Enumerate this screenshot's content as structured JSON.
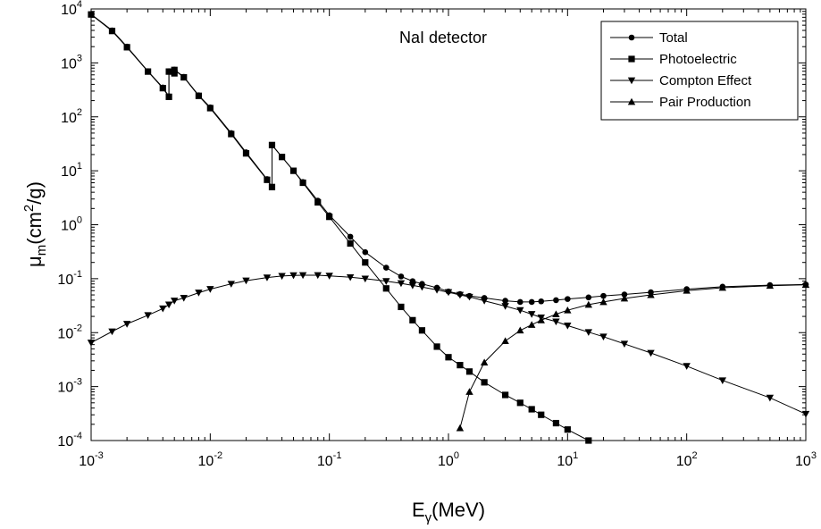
{
  "chart_data": {
    "type": "line",
    "scale": {
      "x": "log",
      "y": "log"
    },
    "xlim": [
      0.001,
      1000
    ],
    "ylim": [
      0.0001,
      10000
    ],
    "xlabel": {
      "main": "E",
      "sub": "γ",
      "rest": "(MeV)"
    },
    "ylabel": {
      "main": "μ",
      "sub": "m",
      "mid": "(cm",
      "sup": "2",
      "rest": "/g)"
    },
    "x_ticks": [
      {
        "value": 0.001,
        "base": "10",
        "exp": "-3"
      },
      {
        "value": 0.01,
        "base": "10",
        "exp": "-2"
      },
      {
        "value": 0.1,
        "base": "10",
        "exp": "-1"
      },
      {
        "value": 1,
        "base": "10",
        "exp": "0"
      },
      {
        "value": 10,
        "base": "10",
        "exp": "1"
      },
      {
        "value": 100,
        "base": "10",
        "exp": "2"
      },
      {
        "value": 1000,
        "base": "10",
        "exp": "3"
      }
    ],
    "y_ticks": [
      {
        "value": 0.0001,
        "base": "10",
        "exp": "-4"
      },
      {
        "value": 0.001,
        "base": "10",
        "exp": "-3"
      },
      {
        "value": 0.01,
        "base": "10",
        "exp": "-2"
      },
      {
        "value": 0.1,
        "base": "10",
        "exp": "-1"
      },
      {
        "value": 1,
        "base": "10",
        "exp": "0"
      },
      {
        "value": 10,
        "base": "10",
        "exp": "1"
      },
      {
        "value": 100,
        "base": "10",
        "exp": "2"
      },
      {
        "value": 1000,
        "base": "10",
        "exp": "3"
      },
      {
        "value": 10000,
        "base": "10",
        "exp": "4"
      }
    ],
    "annotation": "NaI detector",
    "legend_position": "top-right",
    "grid": false,
    "series": [
      {
        "name": "Total",
        "marker": "circle",
        "points": [
          [
            0.001,
            8000
          ],
          [
            0.0015,
            4000
          ],
          [
            0.002,
            2000
          ],
          [
            0.003,
            700
          ],
          [
            0.004,
            350
          ],
          [
            0.0045,
            240
          ],
          [
            0.0045,
            700
          ],
          [
            0.005,
            650
          ],
          [
            0.005,
            750
          ],
          [
            0.006,
            550
          ],
          [
            0.008,
            250
          ],
          [
            0.01,
            150
          ],
          [
            0.015,
            50
          ],
          [
            0.02,
            22
          ],
          [
            0.03,
            7
          ],
          [
            0.033,
            5
          ],
          [
            0.033,
            30
          ],
          [
            0.04,
            18
          ],
          [
            0.05,
            10
          ],
          [
            0.06,
            6.2
          ],
          [
            0.08,
            2.8
          ],
          [
            0.1,
            1.5
          ],
          [
            0.15,
            0.6
          ],
          [
            0.2,
            0.31
          ],
          [
            0.3,
            0.16
          ],
          [
            0.4,
            0.11
          ],
          [
            0.5,
            0.09
          ],
          [
            0.6,
            0.08
          ],
          [
            0.8,
            0.068
          ],
          [
            1,
            0.058
          ],
          [
            1.25,
            0.052
          ],
          [
            1.5,
            0.048
          ],
          [
            2,
            0.044
          ],
          [
            3,
            0.039
          ],
          [
            4,
            0.037
          ],
          [
            5,
            0.037
          ],
          [
            6,
            0.038
          ],
          [
            8,
            0.04
          ],
          [
            10,
            0.042
          ],
          [
            15,
            0.045
          ],
          [
            20,
            0.048
          ],
          [
            30,
            0.051
          ],
          [
            50,
            0.056
          ],
          [
            100,
            0.064
          ],
          [
            200,
            0.071
          ],
          [
            500,
            0.076
          ],
          [
            1000,
            0.078
          ]
        ]
      },
      {
        "name": "Photoelectric",
        "marker": "square",
        "points": [
          [
            0.001,
            7900
          ],
          [
            0.0015,
            3900
          ],
          [
            0.002,
            1950
          ],
          [
            0.003,
            690
          ],
          [
            0.004,
            340
          ],
          [
            0.0045,
            235
          ],
          [
            0.0045,
            690
          ],
          [
            0.005,
            640
          ],
          [
            0.005,
            740
          ],
          [
            0.006,
            540
          ],
          [
            0.008,
            245
          ],
          [
            0.01,
            145
          ],
          [
            0.015,
            48
          ],
          [
            0.02,
            21
          ],
          [
            0.03,
            6.8
          ],
          [
            0.033,
            5
          ],
          [
            0.033,
            30
          ],
          [
            0.04,
            18
          ],
          [
            0.05,
            10
          ],
          [
            0.06,
            6
          ],
          [
            0.08,
            2.6
          ],
          [
            0.1,
            1.4
          ],
          [
            0.15,
            0.45
          ],
          [
            0.2,
            0.2
          ],
          [
            0.3,
            0.066
          ],
          [
            0.4,
            0.03
          ],
          [
            0.5,
            0.017
          ],
          [
            0.6,
            0.011
          ],
          [
            0.8,
            0.0055
          ],
          [
            1,
            0.0035
          ],
          [
            1.25,
            0.0025
          ],
          [
            1.5,
            0.0019
          ],
          [
            2,
            0.0012
          ],
          [
            3,
            0.0007
          ],
          [
            4,
            0.0005
          ],
          [
            5,
            0.00038
          ],
          [
            6,
            0.0003
          ],
          [
            8,
            0.00021
          ],
          [
            10,
            0.00016
          ],
          [
            15,
            0.0001
          ]
        ]
      },
      {
        "name": "Compton Effect",
        "marker": "triangle-down",
        "points": [
          [
            0.001,
            0.0065
          ],
          [
            0.0015,
            0.0105
          ],
          [
            0.002,
            0.0145
          ],
          [
            0.003,
            0.021
          ],
          [
            0.004,
            0.028
          ],
          [
            0.0045,
            0.033
          ],
          [
            0.005,
            0.039
          ],
          [
            0.006,
            0.044
          ],
          [
            0.008,
            0.055
          ],
          [
            0.01,
            0.064
          ],
          [
            0.015,
            0.08
          ],
          [
            0.02,
            0.092
          ],
          [
            0.03,
            0.105
          ],
          [
            0.04,
            0.112
          ],
          [
            0.05,
            0.115
          ],
          [
            0.06,
            0.116
          ],
          [
            0.08,
            0.116
          ],
          [
            0.1,
            0.113
          ],
          [
            0.15,
            0.106
          ],
          [
            0.2,
            0.1
          ],
          [
            0.3,
            0.09
          ],
          [
            0.4,
            0.082
          ],
          [
            0.5,
            0.075
          ],
          [
            0.6,
            0.07
          ],
          [
            0.8,
            0.062
          ],
          [
            1,
            0.056
          ],
          [
            1.25,
            0.05
          ],
          [
            1.5,
            0.046
          ],
          [
            2,
            0.039
          ],
          [
            3,
            0.031
          ],
          [
            4,
            0.026
          ],
          [
            5,
            0.022
          ],
          [
            6,
            0.019
          ],
          [
            8,
            0.016
          ],
          [
            10,
            0.0135
          ],
          [
            15,
            0.0102
          ],
          [
            20,
            0.0084
          ],
          [
            30,
            0.0062
          ],
          [
            50,
            0.0042
          ],
          [
            100,
            0.0024
          ],
          [
            200,
            0.0013
          ],
          [
            500,
            0.00062
          ],
          [
            1000,
            0.00031
          ]
        ]
      },
      {
        "name": "Pair Production",
        "marker": "triangle-up",
        "points": [
          [
            1.25,
            0.00017
          ],
          [
            1.5,
            0.0008
          ],
          [
            2,
            0.0028
          ],
          [
            3,
            0.007
          ],
          [
            4,
            0.011
          ],
          [
            5,
            0.014
          ],
          [
            6,
            0.017
          ],
          [
            8,
            0.022
          ],
          [
            10,
            0.026
          ],
          [
            15,
            0.033
          ],
          [
            20,
            0.037
          ],
          [
            30,
            0.043
          ],
          [
            50,
            0.05
          ],
          [
            100,
            0.06
          ],
          [
            200,
            0.068
          ],
          [
            500,
            0.074
          ],
          [
            1000,
            0.077
          ]
        ]
      }
    ]
  }
}
